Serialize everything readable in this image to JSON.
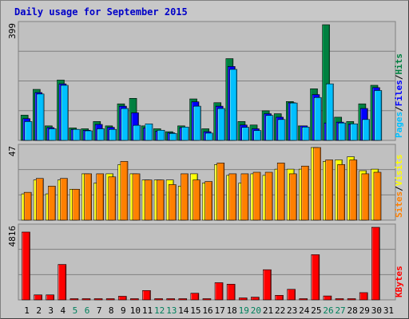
{
  "title": "Daily usage for September 2015",
  "colors": {
    "hits": "#008040",
    "files": "#0000ff",
    "pages": "#00c0ff",
    "visits": "#ffff00",
    "sites": "#ff8000",
    "kbytes": "#ff0000",
    "weekend_label": "#00805c",
    "weekday_label": "#000000",
    "title": "#0000c8",
    "panel_bg": "#c0c0c0",
    "grid": "#808080"
  },
  "chart_data": [
    {
      "type": "bar",
      "panel": "hits-files-pages",
      "ymax_label": "399",
      "ylim": [
        0,
        399
      ],
      "legend": [
        {
          "label": "Pages",
          "color": "#00c0ff"
        },
        {
          "label": "/",
          "color": "#000000"
        },
        {
          "label": "Files",
          "color": "#0000ff"
        },
        {
          "label": "/",
          "color": "#000000"
        },
        {
          "label": "Hits",
          "color": "#008040"
        }
      ],
      "x": [
        1,
        2,
        3,
        4,
        5,
        6,
        7,
        8,
        9,
        10,
        11,
        12,
        13,
        14,
        15,
        16,
        17,
        18,
        19,
        20,
        21,
        22,
        23,
        24,
        25,
        26,
        27,
        28,
        29,
        30,
        31
      ],
      "series": [
        {
          "name": "Hits",
          "values": [
            87,
            176,
            50,
            208,
            43,
            40,
            65,
            50,
            126,
            145,
            50,
            40,
            30,
            50,
            143,
            40,
            130,
            282,
            65,
            53,
            102,
            92,
            134,
            50,
            178,
            399,
            80,
            65,
            126,
            190,
            0
          ]
        },
        {
          "name": "Files",
          "values": [
            75,
            165,
            44,
            195,
            38,
            35,
            55,
            45,
            118,
            95,
            43,
            32,
            26,
            44,
            133,
            30,
            118,
            255,
            53,
            40,
            92,
            80,
            130,
            50,
            158,
            60,
            63,
            56,
            110,
            182,
            0
          ]
        },
        {
          "name": "Pages",
          "values": [
            65,
            160,
            40,
            190,
            38,
            33,
            40,
            38,
            110,
            52,
            57,
            35,
            24,
            46,
            118,
            25,
            110,
            245,
            45,
            34,
            86,
            72,
            129,
            46,
            148,
            195,
            60,
            57,
            72,
            172,
            0
          ]
        }
      ]
    },
    {
      "type": "bar",
      "panel": "visits-sites",
      "ymax_label": "47",
      "ylim": [
        0,
        47
      ],
      "legend": [
        {
          "label": "Sites",
          "color": "#ff8000"
        },
        {
          "label": "/",
          "color": "#000000"
        },
        {
          "label": "Visits",
          "color": "#ffff00"
        }
      ],
      "x": [
        1,
        2,
        3,
        4,
        5,
        6,
        7,
        8,
        9,
        10,
        11,
        12,
        13,
        14,
        15,
        16,
        17,
        18,
        19,
        20,
        21,
        22,
        23,
        24,
        25,
        26,
        27,
        28,
        29,
        30,
        31
      ],
      "series": [
        {
          "name": "Visits",
          "values": [
            17,
            26,
            17,
            26,
            20,
            30,
            24,
            30,
            36,
            30,
            26,
            26,
            26,
            22,
            30,
            24,
            36,
            29,
            24,
            30,
            29,
            33,
            33,
            33,
            47,
            38,
            39,
            41,
            32,
            33,
            0
          ]
        },
        {
          "name": "Sites",
          "values": [
            18,
            27,
            22,
            27,
            20,
            30,
            30,
            28,
            38,
            30,
            26,
            26,
            23,
            30,
            26,
            25,
            37,
            30,
            30,
            31,
            31,
            37,
            30,
            35,
            47,
            39,
            36,
            39,
            30,
            31,
            0
          ]
        }
      ]
    },
    {
      "type": "bar",
      "panel": "kbytes",
      "ymax_label": "4816",
      "ylim": [
        0,
        4816
      ],
      "legend": [
        {
          "label": "KBytes",
          "color": "#ff0000"
        }
      ],
      "x": [
        1,
        2,
        3,
        4,
        5,
        6,
        7,
        8,
        9,
        10,
        11,
        12,
        13,
        14,
        15,
        16,
        17,
        18,
        19,
        20,
        21,
        22,
        23,
        24,
        25,
        26,
        27,
        28,
        29,
        30,
        31
      ],
      "series": [
        {
          "name": "KBytes",
          "values": [
            4500,
            330,
            330,
            2350,
            80,
            80,
            80,
            80,
            240,
            80,
            620,
            80,
            80,
            80,
            440,
            80,
            1140,
            1040,
            130,
            180,
            2000,
            300,
            700,
            80,
            3000,
            260,
            80,
            80,
            480,
            4816,
            0
          ]
        }
      ]
    }
  ],
  "x_labels": [
    {
      "text": "1",
      "weekend": false
    },
    {
      "text": "2",
      "weekend": false
    },
    {
      "text": "3",
      "weekend": false
    },
    {
      "text": "4",
      "weekend": false
    },
    {
      "text": "5",
      "weekend": true
    },
    {
      "text": "6",
      "weekend": true
    },
    {
      "text": "7",
      "weekend": false
    },
    {
      "text": "8",
      "weekend": false
    },
    {
      "text": "9",
      "weekend": false
    },
    {
      "text": "10",
      "weekend": false
    },
    {
      "text": "11",
      "weekend": false
    },
    {
      "text": "12",
      "weekend": true
    },
    {
      "text": "13",
      "weekend": true
    },
    {
      "text": "14",
      "weekend": false
    },
    {
      "text": "15",
      "weekend": false
    },
    {
      "text": "16",
      "weekend": false
    },
    {
      "text": "17",
      "weekend": false
    },
    {
      "text": "18",
      "weekend": false
    },
    {
      "text": "19",
      "weekend": true
    },
    {
      "text": "20",
      "weekend": true
    },
    {
      "text": "21",
      "weekend": false
    },
    {
      "text": "22",
      "weekend": false
    },
    {
      "text": "23",
      "weekend": false
    },
    {
      "text": "24",
      "weekend": false
    },
    {
      "text": "25",
      "weekend": false
    },
    {
      "text": "26",
      "weekend": true
    },
    {
      "text": "27",
      "weekend": true
    },
    {
      "text": "28",
      "weekend": false
    },
    {
      "text": "29",
      "weekend": false
    },
    {
      "text": "30",
      "weekend": false
    },
    {
      "text": "31",
      "weekend": false
    }
  ]
}
